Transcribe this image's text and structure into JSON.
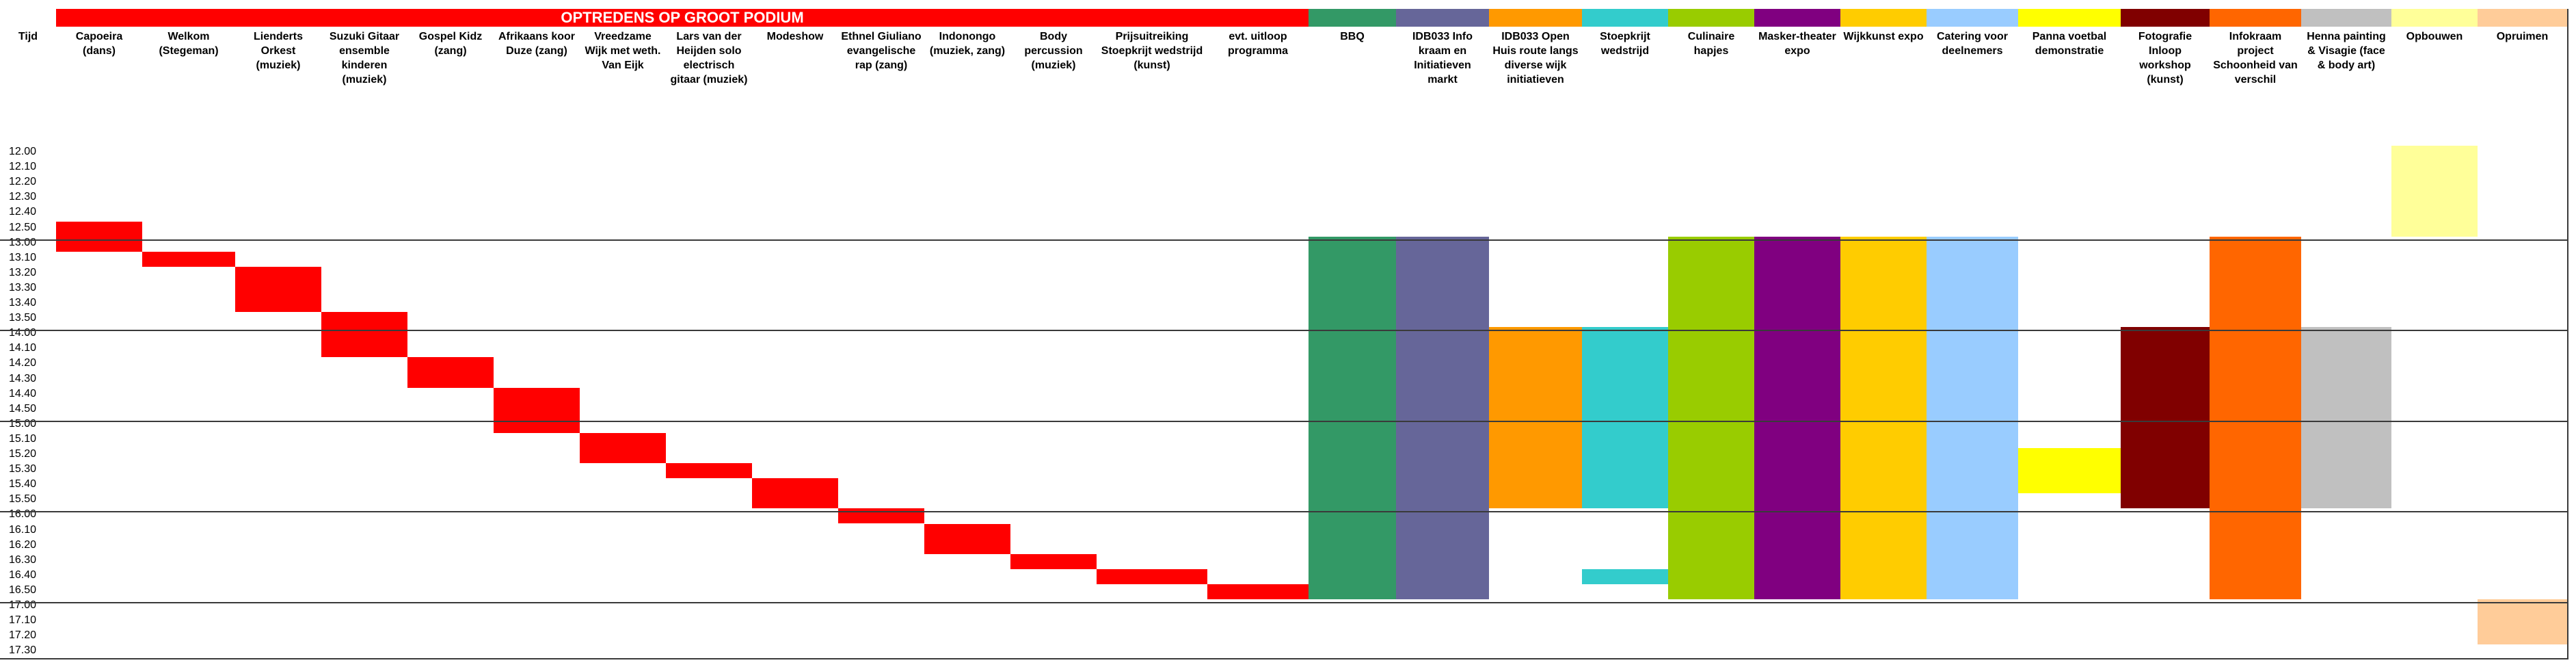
{
  "band": {
    "title": "OPTREDENS OP GROOT PODIUM",
    "colors": [
      "#ff0000",
      "#339966",
      "#666699",
      "#ff9900",
      "#33cccc",
      "#99cc00",
      "#800080",
      "#ffcc00",
      "#99ccff",
      "#ffff00",
      "#800000",
      "#ff6600",
      "#c0c0c0",
      "#ffff99",
      "#ffcc99"
    ]
  },
  "time_header": "Tijd",
  "times": [
    "12.00",
    "12.10",
    "12.20",
    "12.30",
    "12.40",
    "12.50",
    "13.00",
    "13.10",
    "13.20",
    "13.30",
    "13.40",
    "13.50",
    "14.00",
    "14.10",
    "14.20",
    "14.30",
    "14.40",
    "14.50",
    "15.00",
    "15.10",
    "15.20",
    "15.30",
    "15.40",
    "15.50",
    "16.00",
    "16.10",
    "16.20",
    "16.30",
    "16.40",
    "16.50",
    "17.00",
    "17.10",
    "17.20",
    "17.30"
  ],
  "columns": [
    {
      "label": "Capoeira (dans)",
      "color": "#ff0000",
      "blocks": [
        [
          12.83,
          13.17
        ]
      ]
    },
    {
      "label": "Welkom (Stegeman)",
      "color": "#ff0000",
      "blocks": [
        [
          13.17,
          13.33
        ]
      ]
    },
    {
      "label": "Lienderts Orkest (muziek)",
      "color": "#ff0000",
      "blocks": [
        [
          13.33,
          13.83
        ]
      ]
    },
    {
      "label": "Suzuki Gitaar ensemble kinderen (muziek)",
      "color": "#ff0000",
      "blocks": [
        [
          13.83,
          14.33
        ]
      ]
    },
    {
      "label": "Gospel Kidz (zang)",
      "color": "#ff0000",
      "blocks": [
        [
          14.33,
          14.67
        ]
      ]
    },
    {
      "label": "Afrikaans koor Duze (zang)",
      "color": "#ff0000",
      "blocks": [
        [
          14.67,
          15.17
        ]
      ]
    },
    {
      "label": "Vreedzame Wijk met weth. Van Eijk",
      "color": "#ff0000",
      "blocks": [
        [
          15.17,
          15.5
        ]
      ]
    },
    {
      "label": "Lars van der Heijden solo electrisch gitaar (muziek)",
      "color": "#ff0000",
      "blocks": [
        [
          15.5,
          15.67
        ]
      ]
    },
    {
      "label": "Modeshow",
      "color": "#ff0000",
      "blocks": [
        [
          15.67,
          16.0
        ]
      ]
    },
    {
      "label": "Ethnel Giuliano evangelische rap (zang)",
      "color": "#ff0000",
      "blocks": [
        [
          16.0,
          16.17
        ]
      ]
    },
    {
      "label": "Indonongo (muziek, zang)",
      "color": "#ff0000",
      "blocks": [
        [
          16.17,
          16.5
        ]
      ]
    },
    {
      "label": "Body percussion (muziek)",
      "color": "#ff0000",
      "blocks": [
        [
          16.5,
          16.67
        ]
      ]
    },
    {
      "label": "Prijsuitreiking Stoepkrijt wedstrijd (kunst)",
      "color": "#ff0000",
      "blocks": [
        [
          16.67,
          16.83
        ]
      ]
    },
    {
      "label": "evt. uitloop programma",
      "color": "#ff0000",
      "blocks": [
        [
          16.83,
          17.0
        ]
      ]
    },
    {
      "label": "BBQ",
      "color": "#339966",
      "blocks": [
        [
          13.0,
          17.0
        ]
      ]
    },
    {
      "label": "IDB033 Info kraam en Initiatieven markt",
      "color": "#666699",
      "blocks": [
        [
          13.0,
          17.0
        ]
      ]
    },
    {
      "label": "IDB033 Open Huis route langs diverse wijk initiatieven",
      "color": "#ff9900",
      "blocks": [
        [
          14.0,
          16.0
        ]
      ]
    },
    {
      "label": "Stoepkrijt wedstrijd",
      "color": "#33cccc",
      "blocks": [
        [
          14.0,
          16.0
        ],
        [
          16.67,
          16.83
        ]
      ]
    },
    {
      "label": "Culinaire hapjes",
      "color": "#99cc00",
      "blocks": [
        [
          13.0,
          17.0
        ]
      ]
    },
    {
      "label": "Masker-theater expo",
      "color": "#800080",
      "blocks": [
        [
          13.0,
          17.0
        ]
      ]
    },
    {
      "label": "Wijkkunst expo",
      "color": "#ffcc00",
      "blocks": [
        [
          13.0,
          17.0
        ]
      ]
    },
    {
      "label": "Catering voor deelnemers",
      "color": "#99ccff",
      "blocks": [
        [
          13.0,
          17.0
        ]
      ]
    },
    {
      "label": "Panna voetbal demonstratie",
      "color": "#ffff00",
      "blocks": [
        [
          15.33,
          15.83
        ]
      ]
    },
    {
      "label": "Fotografie Inloop workshop (kunst)",
      "color": "#800000",
      "blocks": [
        [
          14.0,
          16.0
        ]
      ]
    },
    {
      "label": "Infokraam project Schoonheid van verschil",
      "color": "#ff6600",
      "blocks": [
        [
          13.0,
          17.0
        ]
      ]
    },
    {
      "label": "Henna painting & Visagie (face & body art)",
      "color": "#c0c0c0",
      "blocks": [
        [
          14.0,
          16.0
        ]
      ]
    },
    {
      "label": "Opbouwen",
      "color": "#ffff99",
      "blocks": [
        [
          12.0,
          13.0
        ]
      ]
    },
    {
      "label": "Opruimen",
      "color": "#ffcc99",
      "blocks": [
        [
          17.0,
          17.5
        ]
      ]
    }
  ]
}
